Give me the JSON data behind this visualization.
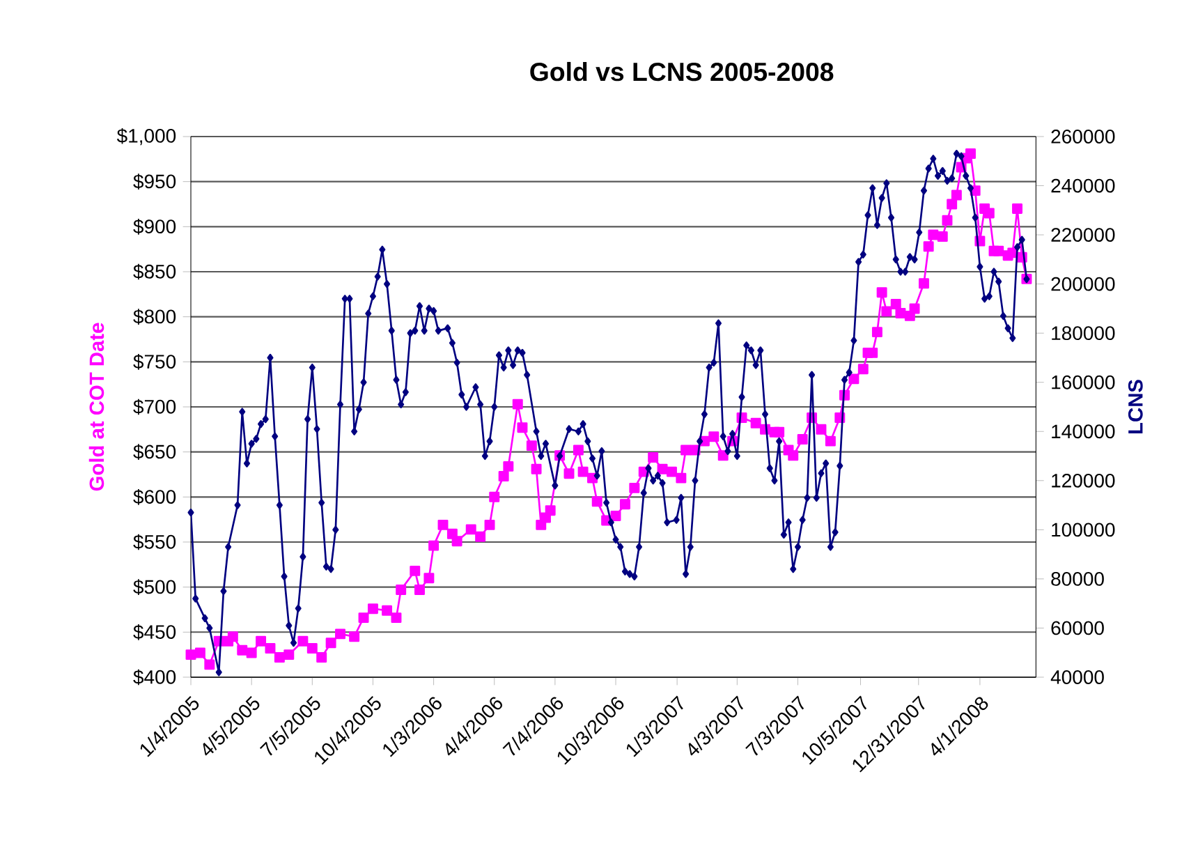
{
  "chart_data": {
    "type": "line",
    "title": "Gold vs LCNS  2005-2008",
    "ylabel": "Gold at COT Date",
    "y2label": "LCNS",
    "grid": "y",
    "xlim": [
      "2005-01-04",
      "2008-06-24"
    ],
    "xticks": [
      {
        "value": "2005-01-04",
        "label": "1/4/2005"
      },
      {
        "value": "2005-04-05",
        "label": "4/5/2005"
      },
      {
        "value": "2005-07-05",
        "label": "7/5/2005"
      },
      {
        "value": "2005-10-04",
        "label": "10/4/2005"
      },
      {
        "value": "2006-01-03",
        "label": "1/3/2006"
      },
      {
        "value": "2006-04-04",
        "label": "4/4/2006"
      },
      {
        "value": "2006-07-04",
        "label": "7/4/2006"
      },
      {
        "value": "2006-10-03",
        "label": "10/3/2006"
      },
      {
        "value": "2007-01-03",
        "label": "1/3/2007"
      },
      {
        "value": "2007-04-03",
        "label": "4/3/2007"
      },
      {
        "value": "2007-07-03",
        "label": "7/3/2007"
      },
      {
        "value": "2007-10-05",
        "label": "10/5/2007"
      },
      {
        "value": "2007-12-31",
        "label": "12/31/2007"
      },
      {
        "value": "2008-04-01",
        "label": "4/1/2008"
      }
    ],
    "ylim": [
      400,
      1000
    ],
    "yticks": [
      {
        "value": 400,
        "label": "$400"
      },
      {
        "value": 450,
        "label": "$450"
      },
      {
        "value": 500,
        "label": "$500"
      },
      {
        "value": 550,
        "label": "$550"
      },
      {
        "value": 600,
        "label": "$600"
      },
      {
        "value": 650,
        "label": "$650"
      },
      {
        "value": 700,
        "label": "$700"
      },
      {
        "value": 750,
        "label": "$750"
      },
      {
        "value": 800,
        "label": "$800"
      },
      {
        "value": 850,
        "label": "$850"
      },
      {
        "value": 900,
        "label": "$900"
      },
      {
        "value": 950,
        "label": "$950"
      },
      {
        "value": 1000,
        "label": "$1,000"
      }
    ],
    "y2lim": [
      40000,
      260000
    ],
    "y2ticks": [
      40000,
      60000,
      80000,
      100000,
      120000,
      140000,
      160000,
      180000,
      200000,
      220000,
      240000,
      260000
    ],
    "series": [
      {
        "color": "#ff00ff",
        "marker": "square",
        "axis": "y",
        "x": [
          "2005-01-04",
          "2005-01-18",
          "2005-02-01",
          "2005-02-15",
          "2005-03-01",
          "2005-03-08",
          "2005-03-22",
          "2005-04-05",
          "2005-04-19",
          "2005-05-03",
          "2005-05-17",
          "2005-05-31",
          "2005-06-21",
          "2005-07-05",
          "2005-07-19",
          "2005-08-02",
          "2005-08-16",
          "2005-09-06",
          "2005-09-20",
          "2005-10-04",
          "2005-10-25",
          "2005-11-08",
          "2005-11-15",
          "2005-12-06",
          "2005-12-13",
          "2005-12-27",
          "2006-01-03",
          "2006-01-17",
          "2006-01-31",
          "2006-02-07",
          "2006-02-28",
          "2006-03-14",
          "2006-03-28",
          "2006-04-04",
          "2006-04-18",
          "2006-04-25",
          "2006-05-09",
          "2006-05-16",
          "2006-05-30",
          "2006-06-06",
          "2006-06-13",
          "2006-06-20",
          "2006-06-27",
          "2006-07-11",
          "2006-07-25",
          "2006-08-08",
          "2006-08-15",
          "2006-08-29",
          "2006-09-05",
          "2006-09-19",
          "2006-10-03",
          "2006-10-17",
          "2006-10-31",
          "2006-11-14",
          "2006-11-28",
          "2006-12-12",
          "2006-12-26",
          "2007-01-09",
          "2007-01-16",
          "2007-01-30",
          "2007-02-13",
          "2007-02-27",
          "2007-03-13",
          "2007-03-27",
          "2007-04-10",
          "2007-05-01",
          "2007-05-15",
          "2007-05-29",
          "2007-06-05",
          "2007-06-19",
          "2007-06-26",
          "2007-07-10",
          "2007-07-24",
          "2007-08-07",
          "2007-08-21",
          "2007-09-04",
          "2007-09-11",
          "2007-09-25",
          "2007-10-09",
          "2007-10-16",
          "2007-10-23",
          "2007-10-30",
          "2007-11-06",
          "2007-11-13",
          "2007-11-27",
          "2007-12-04",
          "2007-12-18",
          "2007-12-25",
          "2008-01-08",
          "2008-01-15",
          "2008-01-22",
          "2008-02-05",
          "2008-02-12",
          "2008-02-19",
          "2008-02-26",
          "2008-03-04",
          "2008-03-11",
          "2008-03-18",
          "2008-03-25",
          "2008-04-01",
          "2008-04-08",
          "2008-04-15",
          "2008-04-22",
          "2008-04-29",
          "2008-05-13",
          "2008-05-20",
          "2008-05-27",
          "2008-06-03",
          "2008-06-10"
        ],
        "values": [
          425,
          427,
          414,
          440,
          440,
          445,
          430,
          427,
          440,
          432,
          422,
          425,
          440,
          432,
          422,
          438,
          448,
          445,
          466,
          476,
          474,
          466,
          497,
          518,
          497,
          510,
          546,
          569,
          559,
          551,
          564,
          556,
          569,
          600,
          623,
          634,
          703,
          677,
          657,
          631,
          569,
          577,
          585,
          646,
          626,
          652,
          628,
          621,
          595,
          574,
          579,
          592,
          610,
          628,
          644,
          631,
          628,
          621,
          652,
          652,
          662,
          667,
          646,
          662,
          688,
          682,
          675,
          672,
          672,
          652,
          646,
          664,
          688,
          675,
          662,
          688,
          713,
          731,
          742,
          760,
          760,
          783,
          827,
          806,
          814,
          804,
          801,
          809,
          837,
          878,
          891,
          889,
          907,
          925,
          935,
          966,
          976,
          981,
          940,
          884,
          920,
          915,
          873,
          873,
          868,
          871,
          920,
          866,
          842
        ]
      },
      {
        "color": "#000080",
        "marker": "diamond",
        "axis": "y2",
        "x": [
          "2005-01-04",
          "2005-01-11",
          "2005-01-25",
          "2005-02-01",
          "2005-02-15",
          "2005-02-22",
          "2005-03-01",
          "2005-03-15",
          "2005-03-22",
          "2005-03-29",
          "2005-04-05",
          "2005-04-12",
          "2005-04-19",
          "2005-04-26",
          "2005-05-03",
          "2005-05-10",
          "2005-05-17",
          "2005-05-24",
          "2005-05-31",
          "2005-06-07",
          "2005-06-14",
          "2005-06-21",
          "2005-06-28",
          "2005-07-05",
          "2005-07-12",
          "2005-07-19",
          "2005-07-26",
          "2005-08-02",
          "2005-08-09",
          "2005-08-16",
          "2005-08-23",
          "2005-08-30",
          "2005-09-06",
          "2005-09-13",
          "2005-09-20",
          "2005-09-27",
          "2005-10-04",
          "2005-10-11",
          "2005-10-18",
          "2005-10-25",
          "2005-11-01",
          "2005-11-08",
          "2005-11-15",
          "2005-11-22",
          "2005-11-29",
          "2005-12-06",
          "2005-12-13",
          "2005-12-20",
          "2005-12-27",
          "2006-01-03",
          "2006-01-10",
          "2006-01-24",
          "2006-01-31",
          "2006-02-07",
          "2006-02-14",
          "2006-02-21",
          "2006-03-07",
          "2006-03-14",
          "2006-03-21",
          "2006-03-28",
          "2006-04-04",
          "2006-04-11",
          "2006-04-18",
          "2006-04-25",
          "2006-05-02",
          "2006-05-09",
          "2006-05-16",
          "2006-05-23",
          "2006-06-06",
          "2006-06-13",
          "2006-06-20",
          "2006-07-04",
          "2006-07-11",
          "2006-07-25",
          "2006-08-08",
          "2006-08-15",
          "2006-08-22",
          "2006-08-29",
          "2006-09-05",
          "2006-09-12",
          "2006-09-19",
          "2006-09-26",
          "2006-10-03",
          "2006-10-10",
          "2006-10-17",
          "2006-10-24",
          "2006-10-31",
          "2006-11-07",
          "2006-11-14",
          "2006-11-21",
          "2006-11-28",
          "2006-12-05",
          "2006-12-12",
          "2006-12-19",
          "2007-01-02",
          "2007-01-09",
          "2007-01-16",
          "2007-01-23",
          "2007-01-30",
          "2007-02-06",
          "2007-02-13",
          "2007-02-20",
          "2007-02-27",
          "2007-03-06",
          "2007-03-13",
          "2007-03-20",
          "2007-03-27",
          "2007-04-03",
          "2007-04-10",
          "2007-04-17",
          "2007-04-24",
          "2007-05-01",
          "2007-05-08",
          "2007-05-15",
          "2007-05-22",
          "2007-05-29",
          "2007-06-05",
          "2007-06-12",
          "2007-06-19",
          "2007-06-26",
          "2007-07-03",
          "2007-07-10",
          "2007-07-17",
          "2007-07-24",
          "2007-07-31",
          "2007-08-07",
          "2007-08-14",
          "2007-08-21",
          "2007-08-28",
          "2007-09-04",
          "2007-09-11",
          "2007-09-18",
          "2007-09-25",
          "2007-10-02",
          "2007-10-09",
          "2007-10-16",
          "2007-10-23",
          "2007-10-30",
          "2007-11-06",
          "2007-11-13",
          "2007-11-20",
          "2007-11-27",
          "2007-12-04",
          "2007-12-11",
          "2007-12-18",
          "2007-12-25",
          "2008-01-01",
          "2008-01-08",
          "2008-01-15",
          "2008-01-22",
          "2008-01-29",
          "2008-02-05",
          "2008-02-12",
          "2008-02-19",
          "2008-02-26",
          "2008-03-04",
          "2008-03-11",
          "2008-03-18",
          "2008-03-25",
          "2008-04-01",
          "2008-04-08",
          "2008-04-15",
          "2008-04-22",
          "2008-04-29",
          "2008-05-06",
          "2008-05-13",
          "2008-05-20",
          "2008-05-27",
          "2008-06-03",
          "2008-06-10"
        ],
        "values": [
          107000,
          72000,
          64000,
          60000,
          42000,
          75000,
          93000,
          110000,
          148000,
          127000,
          135000,
          137000,
          143000,
          145000,
          170000,
          138000,
          110000,
          81000,
          61000,
          54000,
          68000,
          89000,
          145000,
          166000,
          141000,
          111000,
          85000,
          84000,
          100000,
          151000,
          194000,
          194000,
          140000,
          149000,
          160000,
          188000,
          195000,
          203000,
          214000,
          200000,
          181000,
          161000,
          151000,
          156000,
          180000,
          181000,
          191000,
          181000,
          190000,
          189000,
          181000,
          182000,
          176000,
          168000,
          155000,
          150000,
          158000,
          151000,
          130000,
          136000,
          150000,
          171000,
          166000,
          173000,
          167000,
          173000,
          172000,
          163000,
          140000,
          130000,
          135000,
          118000,
          130000,
          141000,
          140000,
          143000,
          136000,
          129000,
          122000,
          132000,
          111000,
          103000,
          96000,
          93000,
          83000,
          82000,
          81000,
          93000,
          115000,
          125000,
          120000,
          122000,
          119000,
          103000,
          104000,
          113000,
          82000,
          93000,
          120000,
          136000,
          147000,
          166000,
          168000,
          184000,
          138000,
          132000,
          139000,
          130000,
          154000,
          175000,
          173000,
          167000,
          173000,
          147000,
          125000,
          120000,
          136000,
          98000,
          103000,
          84000,
          93000,
          104000,
          113000,
          163000,
          113000,
          123000,
          127000,
          93000,
          99000,
          126000,
          161000,
          164000,
          177000,
          209000,
          212000,
          228000,
          239000,
          224000,
          235000,
          241000,
          227000,
          210000,
          205000,
          205000,
          211000,
          210000,
          221000,
          238000,
          247000,
          251000,
          244000,
          246000,
          242000,
          243000,
          253000,
          252000,
          244000,
          239000,
          227000,
          207000,
          194000,
          195000,
          205000,
          201000,
          187000,
          182000,
          178000,
          215000,
          218000,
          202000
        ]
      }
    ]
  }
}
